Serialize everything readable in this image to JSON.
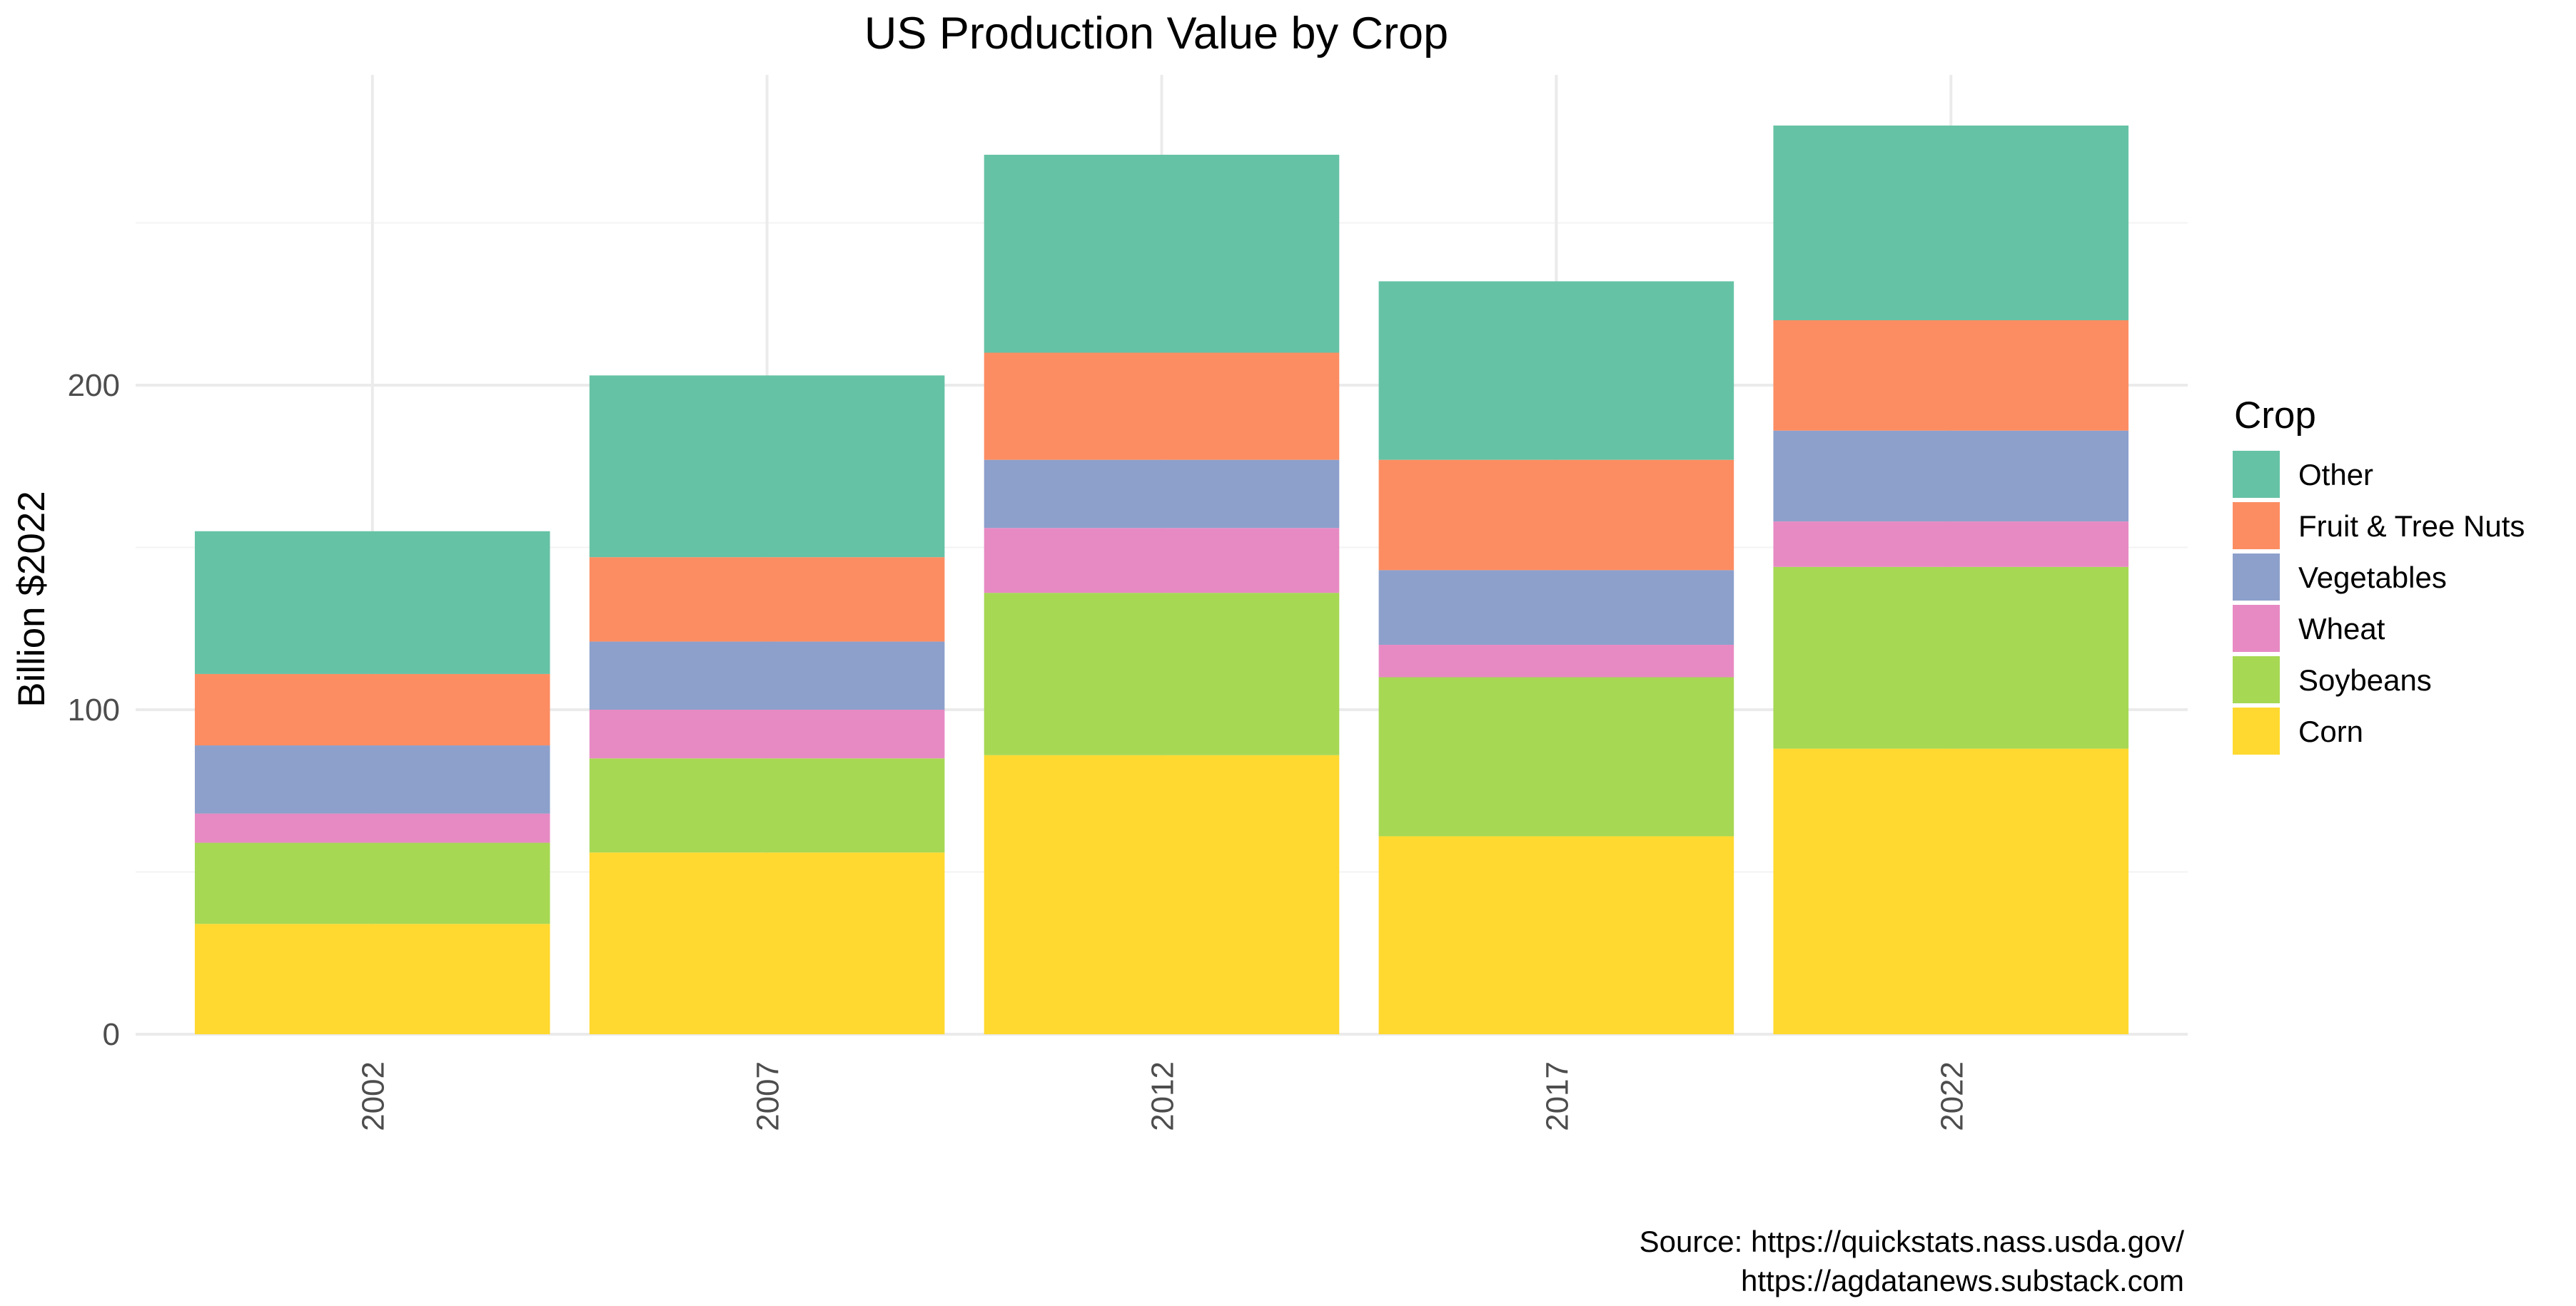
{
  "chart_data": {
    "type": "bar",
    "stacked": true,
    "title": "US Production Value by Crop",
    "xlabel": "",
    "ylabel": "Billion $2022",
    "categories": [
      "2002",
      "2007",
      "2012",
      "2017",
      "2022"
    ],
    "ylim": [
      0,
      290
    ],
    "yticks": [
      0,
      100,
      200
    ],
    "legend_title": "Crop",
    "legend_position": "right",
    "series": [
      {
        "name": "Corn",
        "color": "#FFD92F",
        "values": [
          34,
          56,
          86,
          61,
          88
        ]
      },
      {
        "name": "Soybeans",
        "color": "#A6D854",
        "values": [
          25,
          29,
          50,
          49,
          56
        ]
      },
      {
        "name": "Wheat",
        "color": "#E78AC3",
        "values": [
          9,
          15,
          20,
          10,
          14
        ]
      },
      {
        "name": "Vegetables",
        "color": "#8DA0CB",
        "values": [
          21,
          21,
          21,
          23,
          28
        ]
      },
      {
        "name": "Fruit & Tree Nuts",
        "color": "#FC8D62",
        "values": [
          22,
          26,
          33,
          34,
          34
        ]
      },
      {
        "name": "Other",
        "color": "#66C2A5",
        "values": [
          44,
          56,
          61,
          55,
          60
        ]
      }
    ],
    "legend_order": [
      "Other",
      "Fruit & Tree Nuts",
      "Vegetables",
      "Wheat",
      "Soybeans",
      "Corn"
    ]
  },
  "caption": {
    "line1": "Source: https://quickstats.nass.usda.gov/",
    "line2": "https://agdatanews.substack.com"
  }
}
